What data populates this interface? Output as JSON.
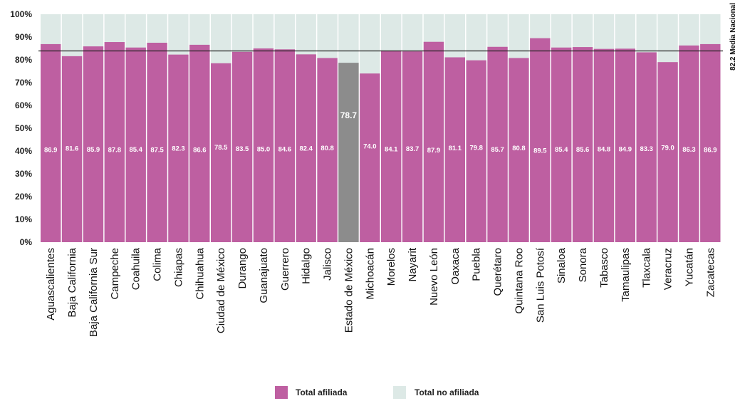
{
  "chart_data": {
    "type": "bar",
    "stacked_to": 100,
    "categories": [
      "Aguascalientes",
      "Baja California",
      "Baja California Sur",
      "Campeche",
      "Coahuila",
      "Colima",
      "Chiapas",
      "Chihuahua",
      "Ciudad de México",
      "Durango",
      "Guanajuato",
      "Guerrero",
      "Hidalgo",
      "Jalisco",
      "Estado de México",
      "Michoacán",
      "Morelos",
      "Nayarit",
      "Nuevo León",
      "Oaxaca",
      "Puebla",
      "Querétaro",
      "Quintana Roo",
      "San Luis Potosí",
      "Sinaloa",
      "Sonora",
      "Tabasco",
      "Tamaulipas",
      "Tlaxcala",
      "Veracruz",
      "Yucatán",
      "Zacatecas"
    ],
    "series": [
      {
        "name": "Total afiliada",
        "values": [
          86.9,
          81.6,
          85.9,
          87.8,
          85.4,
          87.5,
          82.3,
          86.6,
          78.5,
          83.5,
          85.0,
          84.6,
          82.4,
          80.8,
          78.7,
          74.0,
          84.1,
          83.7,
          87.9,
          81.1,
          79.8,
          85.7,
          80.8,
          89.5,
          85.4,
          85.6,
          84.8,
          84.9,
          83.3,
          79.0,
          86.3,
          86.9
        ]
      },
      {
        "name": "Total no afiliada"
      }
    ],
    "value_labels": [
      "86.9",
      "81.6",
      "85.9",
      "87.8",
      "85.4",
      "87.5",
      "82.3",
      "86.6",
      "78.5",
      "83.5",
      "85.0",
      "84.6",
      "82.4",
      "80.8",
      "78.7",
      "74.0",
      "84.1",
      "83.7",
      "87.9",
      "81.1",
      "79.8",
      "85.7",
      "80.8",
      "89.5",
      "85.4",
      "85.6",
      "84.8",
      "84.9",
      "83.3",
      "79.0",
      "86.3",
      "86.9"
    ],
    "highlight_category": "Estado de México",
    "yticks": [
      "0%",
      "10%",
      "20%",
      "30%",
      "40%",
      "50%",
      "60%",
      "70%",
      "80%",
      "90%",
      "100%"
    ],
    "ylim": [
      0,
      100
    ],
    "reference_line": {
      "value": 82.2,
      "label": "82.2 Media Nacional"
    },
    "legend_position": "bottom-center",
    "grid": false,
    "colors": {
      "afiliada": "#be5fa1",
      "no_afiliada": "#dde9e6",
      "highlight": "#8c8c8c",
      "reference_line": "#222222"
    }
  }
}
